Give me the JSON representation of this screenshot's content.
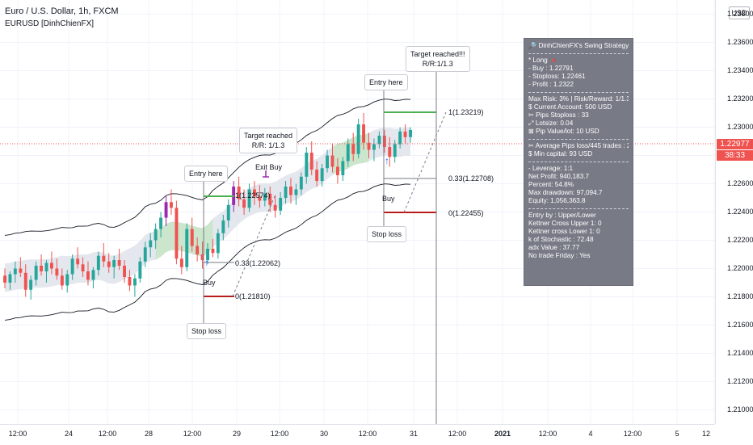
{
  "header": {
    "symbol": "Euro / U.S. Dollar, 1h, FXCM",
    "indicator": "EURUSD [DinhChienFX]"
  },
  "price_axis": {
    "currency": "USD",
    "ticks": [
      "1.23800",
      "1.23600",
      "1.23400",
      "1.23200",
      "1.23000",
      "1.22800",
      "1.22600",
      "1.22400",
      "1.22200",
      "1.22000",
      "1.21800",
      "1.21600",
      "1.21400",
      "1.21200",
      "1.21000"
    ],
    "last_price": "1.22977",
    "countdown": "38:33",
    "colors": {
      "last_price_bg": "#ef5350",
      "countdown_bg": "#ef5350"
    }
  },
  "time_axis": {
    "ticks": [
      "12:00",
      "24",
      "12:00",
      "28",
      "12:00",
      "29",
      "12:00",
      "30",
      "12:00",
      "31",
      "12:00",
      "2021",
      "12:00",
      "4",
      "12:00",
      "5",
      "12"
    ],
    "bold": [
      false,
      false,
      false,
      false,
      false,
      false,
      false,
      false,
      false,
      false,
      false,
      true,
      false,
      false,
      false,
      false,
      false
    ]
  },
  "annotations": {
    "entry_1": "Entry here",
    "target_1": [
      "Target reached",
      "R/R: 1/1.3"
    ],
    "exit_buy": "Exit Buy",
    "buy_1": "Buy",
    "stop_1": "Stop loss",
    "level_1_top": "1(1.22574)",
    "level_1_mid": "0.33(1.22062)",
    "level_1_bot": "0(1.21810)",
    "entry_2": "Entry here",
    "target_2": [
      "Target reached!!!",
      "R/R:1/1.3"
    ],
    "buy_2": "Buy",
    "stop_2": "Stop loss",
    "level_2_top": "1(1.23219)",
    "level_2_mid": "0.33(1.22708)",
    "level_2_bot": "0(1.22455)"
  },
  "info_panel": {
    "title": "🔎 DinhChienFX's Swing Strategy",
    "trade": [
      "* Long 🔺",
      " - Buy    : 1.22791",
      " - Stoploss: 1.22461",
      " - Profit   : 1.2322"
    ],
    "risk": [
      "Max Risk: 3% | Risk/Reward: 1/1.3",
      "$ Current Account: 500 USD",
      "✂ Pips Stoploss : 33",
      "⤢ Lotsize: 0.04",
      "⊠ Pip Value/lot: 10 USD"
    ],
    "pips": [
      "✂ Average Pips loss/445 trades : 28",
      "$ Min capital: 93 USD"
    ],
    "stats": [
      "- Leverage: 1:1",
      "Net Profit: 940,183.7",
      "Percent: 54.8%",
      "Max drawdown: 97,094.7",
      "Equity: 1,056,363.8"
    ],
    "settings": [
      "Entry by : Upper/Lower",
      "Kettner Cross Upper 1: 0",
      "Kettner cross Lower 1: 0",
      "k of Stochastic : 72.48",
      "adx Value : 37.77",
      "No trade Friday : Yes"
    ]
  },
  "chart_data": {
    "type": "candlestick",
    "y_range": [
      1.209,
      1.239
    ],
    "candle_colors": {
      "up": "#26a69a",
      "down": "#ef5350",
      "signal": "#9c27b0"
    },
    "channel_colors": {
      "band_line": "#131722",
      "fill": "#e0e3eb",
      "green_fill": "#c8e6c9"
    },
    "candles": [
      [
        1.2195,
        1.22,
        1.2186,
        1.219
      ],
      [
        1.219,
        1.2198,
        1.2185,
        1.2196
      ],
      [
        1.2196,
        1.2205,
        1.219,
        1.22
      ],
      [
        1.22,
        1.2208,
        1.2194,
        1.2197
      ],
      [
        1.2197,
        1.2203,
        1.218,
        1.2185
      ],
      [
        1.2185,
        1.2195,
        1.2178,
        1.2192
      ],
      [
        1.2192,
        1.2205,
        1.2188,
        1.2202
      ],
      [
        1.2202,
        1.221,
        1.2195,
        1.2198
      ],
      [
        1.2198,
        1.2206,
        1.219,
        1.2204
      ],
      [
        1.2204,
        1.2212,
        1.2196,
        1.22
      ],
      [
        1.22,
        1.2207,
        1.2192,
        1.2195
      ],
      [
        1.2195,
        1.22,
        1.2185,
        1.2188
      ],
      [
        1.2188,
        1.2199,
        1.2183,
        1.2196
      ],
      [
        1.2196,
        1.221,
        1.2192,
        1.2207
      ],
      [
        1.2207,
        1.2215,
        1.22,
        1.2203
      ],
      [
        1.2203,
        1.2208,
        1.2194,
        1.2198
      ],
      [
        1.2198,
        1.2205,
        1.2188,
        1.2192
      ],
      [
        1.2192,
        1.2201,
        1.2186,
        1.2199
      ],
      [
        1.2199,
        1.2212,
        1.2195,
        1.2209
      ],
      [
        1.2209,
        1.2218,
        1.2201,
        1.2205
      ],
      [
        1.2205,
        1.2211,
        1.2197,
        1.2201
      ],
      [
        1.2201,
        1.2209,
        1.2193,
        1.2206
      ],
      [
        1.2206,
        1.2214,
        1.2199,
        1.2202
      ],
      [
        1.2202,
        1.2206,
        1.219,
        1.2194
      ],
      [
        1.2194,
        1.2199,
        1.2184,
        1.2188
      ],
      [
        1.2188,
        1.2196,
        1.218,
        1.2193
      ],
      [
        1.2193,
        1.2208,
        1.219,
        1.2205
      ],
      [
        1.2205,
        1.2219,
        1.2201,
        1.2215
      ],
      [
        1.2215,
        1.2225,
        1.2208,
        1.222
      ],
      [
        1.222,
        1.2232,
        1.2214,
        1.2228
      ],
      [
        1.2228,
        1.224,
        1.2222,
        1.2236
      ],
      [
        1.2236,
        1.2252,
        1.223,
        1.2247
      ],
      [
        1.2247,
        1.2256,
        1.2238,
        1.2243
      ],
      [
        1.2243,
        1.2248,
        1.2203,
        1.2207
      ],
      [
        1.2207,
        1.2216,
        1.2196,
        1.2201
      ],
      [
        1.2201,
        1.2232,
        1.2198,
        1.2228
      ],
      [
        1.2228,
        1.2236,
        1.2212,
        1.2216
      ],
      [
        1.2216,
        1.2222,
        1.2205,
        1.221
      ],
      [
        1.221,
        1.2219,
        1.22,
        1.2206
      ],
      [
        1.2206,
        1.2218,
        1.2203,
        1.2214
      ],
      [
        1.2214,
        1.2221,
        1.2208,
        1.2211
      ],
      [
        1.2211,
        1.2228,
        1.2207,
        1.2225
      ],
      [
        1.2225,
        1.2238,
        1.222,
        1.2234
      ],
      [
        1.2234,
        1.2249,
        1.2229,
        1.2245
      ],
      [
        1.2245,
        1.2262,
        1.224,
        1.2258
      ],
      [
        1.2258,
        1.2265,
        1.2244,
        1.2249
      ],
      [
        1.2249,
        1.2256,
        1.2238,
        1.2243
      ],
      [
        1.2243,
        1.226,
        1.224,
        1.2256
      ],
      [
        1.2256,
        1.2262,
        1.2245,
        1.2251
      ],
      [
        1.2251,
        1.2259,
        1.2243,
        1.2248
      ],
      [
        1.2248,
        1.2257,
        1.2244,
        1.2253
      ],
      [
        1.2253,
        1.2258,
        1.224,
        1.2245
      ],
      [
        1.2245,
        1.2252,
        1.2236,
        1.2241
      ],
      [
        1.2241,
        1.2254,
        1.2238,
        1.225
      ],
      [
        1.225,
        1.2262,
        1.2246,
        1.2258
      ],
      [
        1.2258,
        1.2264,
        1.2246,
        1.2252
      ],
      [
        1.2252,
        1.226,
        1.2245,
        1.2256
      ],
      [
        1.2256,
        1.2268,
        1.2252,
        1.2265
      ],
      [
        1.2265,
        1.2286,
        1.226,
        1.2282
      ],
      [
        1.2282,
        1.229,
        1.2266,
        1.227
      ],
      [
        1.227,
        1.2276,
        1.2258,
        1.2262
      ],
      [
        1.2262,
        1.2274,
        1.2258,
        1.2271
      ],
      [
        1.2271,
        1.2284,
        1.2268,
        1.228
      ],
      [
        1.228,
        1.2288,
        1.2268,
        1.2272
      ],
      [
        1.2272,
        1.2278,
        1.226,
        1.2266
      ],
      [
        1.2266,
        1.2279,
        1.2262,
        1.2276
      ],
      [
        1.2276,
        1.2292,
        1.2272,
        1.2288
      ],
      [
        1.2288,
        1.2296,
        1.2276,
        1.2281
      ],
      [
        1.2281,
        1.2306,
        1.2278,
        1.2302
      ],
      [
        1.2302,
        1.231,
        1.2284,
        1.2289
      ],
      [
        1.2289,
        1.2296,
        1.2278,
        1.2284
      ],
      [
        1.2284,
        1.2292,
        1.2276,
        1.2288
      ],
      [
        1.2288,
        1.2297,
        1.2285,
        1.2294
      ],
      [
        1.2294,
        1.2298,
        1.2282,
        1.2286
      ],
      [
        1.2286,
        1.2293,
        1.2272,
        1.2279
      ],
      [
        1.2279,
        1.2291,
        1.2275,
        1.2288
      ],
      [
        1.2288,
        1.23,
        1.2285,
        1.2297
      ],
      [
        1.2297,
        1.2302,
        1.2288,
        1.2293
      ],
      [
        1.2293,
        1.23,
        1.2289,
        1.2298
      ]
    ]
  }
}
